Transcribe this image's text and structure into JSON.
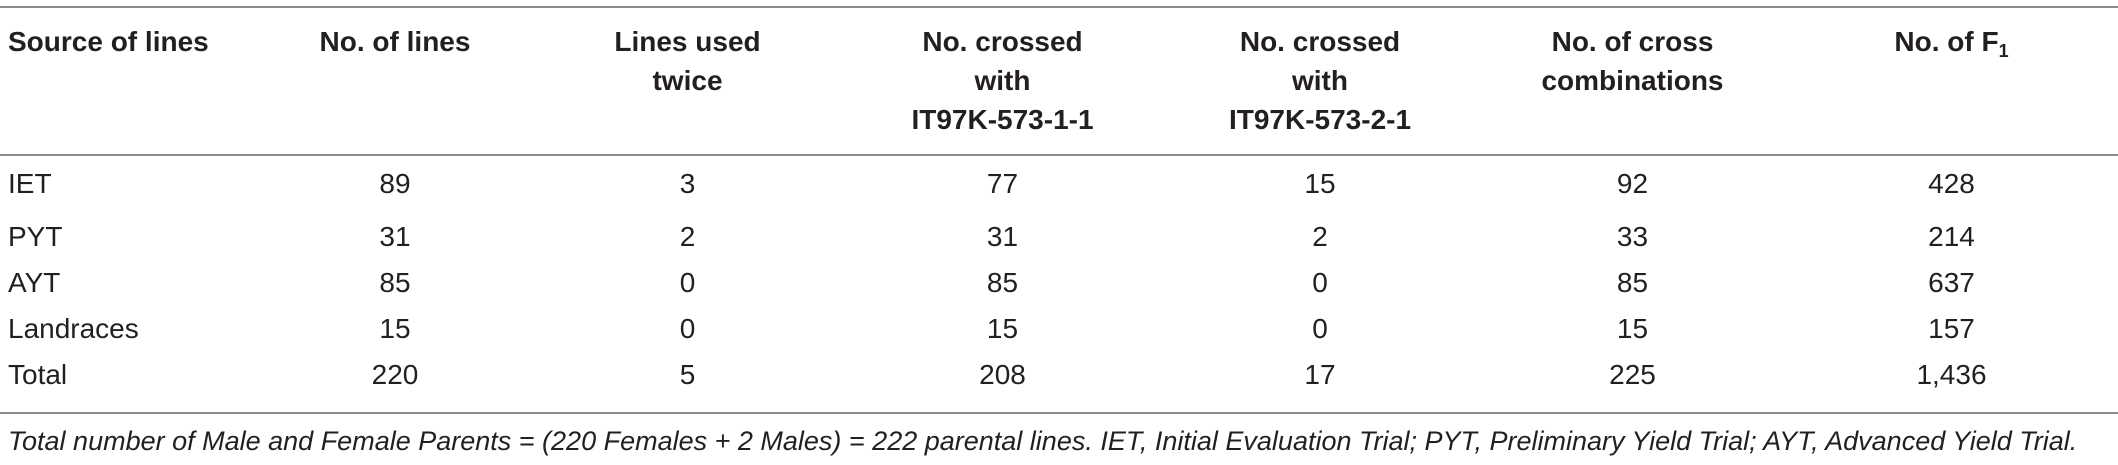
{
  "table": {
    "headers": [
      {
        "lines": [
          "Source of lines"
        ]
      },
      {
        "lines": [
          "No. of lines"
        ]
      },
      {
        "lines": [
          "Lines used",
          "twice"
        ]
      },
      {
        "lines": [
          "No. crossed",
          "with",
          "IT97K-573-1-1"
        ]
      },
      {
        "lines": [
          "No. crossed",
          "with",
          "IT97K-573-2-1"
        ]
      },
      {
        "lines": [
          "No. of cross",
          "combinations"
        ]
      },
      {
        "lines": [
          "No. of F"
        ],
        "subscript": "1"
      }
    ],
    "rows": [
      [
        "IET",
        "89",
        "3",
        "77",
        "15",
        "92",
        "428"
      ],
      [
        "PYT",
        "31",
        "2",
        "31",
        "2",
        "33",
        "214"
      ],
      [
        "AYT",
        "85",
        "0",
        "85",
        "0",
        "85",
        "637"
      ],
      [
        "Landraces",
        "15",
        "0",
        "15",
        "0",
        "15",
        "157"
      ],
      [
        "Total",
        "220",
        "5",
        "208",
        "17",
        "225",
        "1,436"
      ]
    ]
  },
  "footnote": "Total number of Male and Female Parents = (220 Females + 2 Males) = 222 parental lines. IET, Initial Evaluation Trial; PYT, Preliminary Yield Trial; AYT, Advanced Yield Trial."
}
